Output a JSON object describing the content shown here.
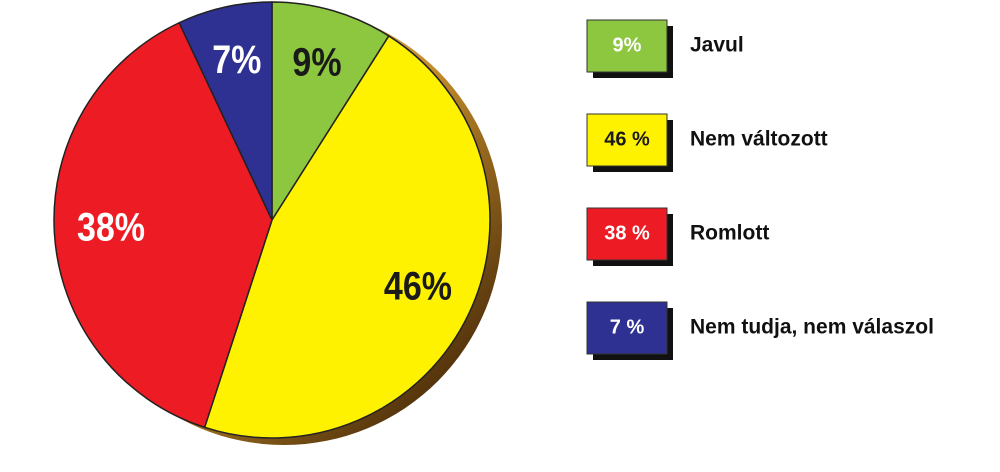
{
  "chart_data": {
    "type": "pie",
    "categories": [
      "Javul",
      "Nem változott",
      "Romlott",
      "Nem tudja, nem válaszol"
    ],
    "values": [
      9,
      46,
      38,
      7
    ],
    "value_labels": [
      "9%",
      "46%",
      "38%",
      "7%"
    ],
    "legend_value_labels": [
      "9%",
      "46 %",
      "38 %",
      "7 %"
    ],
    "colors": [
      "#8dc63f",
      "#fff200",
      "#ed1c24",
      "#2e3192"
    ]
  }
}
